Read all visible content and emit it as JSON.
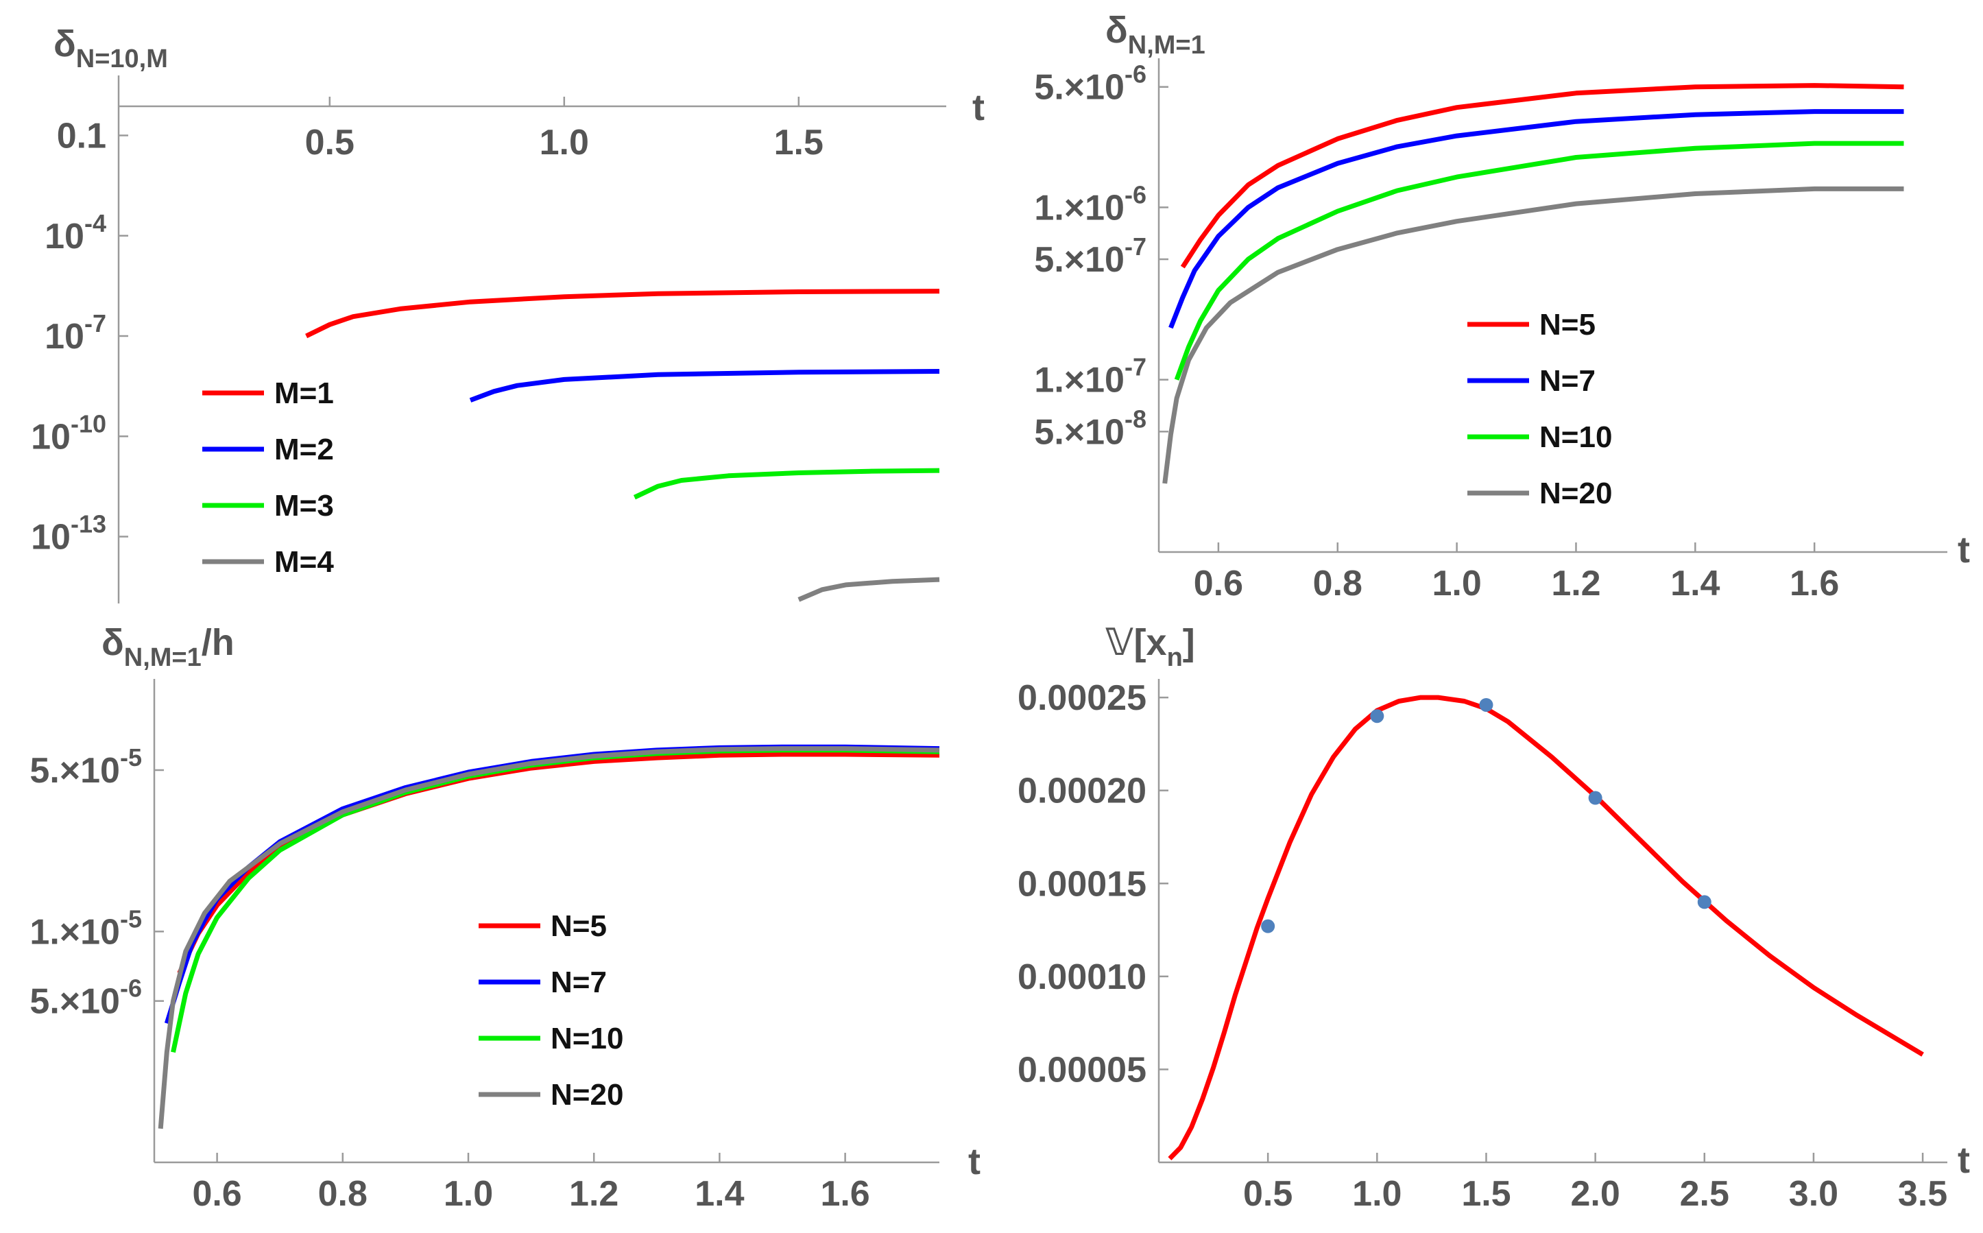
{
  "chart_data": [
    {
      "id": "p1",
      "type": "line",
      "yscale": "log",
      "title": {
        "main": "δ",
        "sub": "N=10,M"
      },
      "xlabel": "t",
      "xlim": [
        0.05,
        1.8
      ],
      "ylim": [
        1e-15,
        10
      ],
      "xticks": [
        {
          "v": 0.5,
          "label": "0.5"
        },
        {
          "v": 1.0,
          "label": "1.0"
        },
        {
          "v": 1.5,
          "label": "1.5"
        }
      ],
      "yticks": [
        {
          "v": 0.1,
          "label": "0.1"
        },
        {
          "v": 0.0001,
          "label": "10",
          "exp": "-4"
        },
        {
          "v": 1e-07,
          "label": "10",
          "exp": "-7"
        },
        {
          "v": 1e-10,
          "label": "10",
          "exp": "-10"
        },
        {
          "v": 1e-13,
          "label": "10",
          "exp": "-13"
        }
      ],
      "legend_position": "bottom-left",
      "series": [
        {
          "name": "M=1",
          "color": "#ff0000",
          "x": [
            0.45,
            0.5,
            0.55,
            0.65,
            0.8,
            1.0,
            1.2,
            1.5,
            1.8
          ],
          "y": [
            1e-07,
            2.2e-07,
            3.8e-07,
            6.5e-07,
            1.05e-06,
            1.5e-06,
            1.85e-06,
            2.1e-06,
            2.2e-06
          ]
        },
        {
          "name": "M=2",
          "color": "#0000ff",
          "x": [
            0.8,
            0.85,
            0.9,
            1.0,
            1.2,
            1.5,
            1.8
          ],
          "y": [
            1.2e-09,
            2.2e-09,
            3.3e-09,
            5e-09,
            7e-09,
            8.3e-09,
            8.8e-09
          ]
        },
        {
          "name": "M=3",
          "color": "#00ee00",
          "x": [
            1.15,
            1.2,
            1.25,
            1.35,
            1.5,
            1.65,
            1.8
          ],
          "y": [
            1.5e-12,
            3.2e-12,
            4.8e-12,
            6.6e-12,
            8.1e-12,
            9e-12,
            9.5e-12
          ]
        },
        {
          "name": "M=4",
          "color": "#808080",
          "x": [
            1.5,
            1.55,
            1.6,
            1.7,
            1.8
          ],
          "y": [
            1.3e-15,
            2.6e-15,
            3.6e-15,
            4.6e-15,
            5.2e-15
          ]
        }
      ]
    },
    {
      "id": "p2",
      "type": "line",
      "yscale": "log",
      "title": {
        "main": "δ",
        "sub": "N,M=1"
      },
      "xlabel": "t",
      "xlim": [
        0.5,
        1.8
      ],
      "ylim": [
        1e-08,
        7e-06
      ],
      "xticks": [
        {
          "v": 0.6,
          "label": "0.6"
        },
        {
          "v": 0.8,
          "label": "0.8"
        },
        {
          "v": 1.0,
          "label": "1.0"
        },
        {
          "v": 1.2,
          "label": "1.2"
        },
        {
          "v": 1.4,
          "label": "1.4"
        },
        {
          "v": 1.6,
          "label": "1.6"
        }
      ],
      "yticks": [
        {
          "v": 5e-06,
          "label": "5.×10",
          "exp": "-6"
        },
        {
          "v": 1e-06,
          "label": "1.×10",
          "exp": "-6"
        },
        {
          "v": 5e-07,
          "label": "5.×10",
          "exp": "-7"
        },
        {
          "v": 1e-07,
          "label": "1.×10",
          "exp": "-7"
        },
        {
          "v": 5e-08,
          "label": "5.×10",
          "exp": "-8"
        }
      ],
      "legend_position": "center-right",
      "series": [
        {
          "name": "N=5",
          "color": "#ff0000",
          "x": [
            0.54,
            0.57,
            0.6,
            0.65,
            0.7,
            0.8,
            0.9,
            1.0,
            1.2,
            1.4,
            1.6,
            1.75
          ],
          "y": [
            4.5e-07,
            6.5e-07,
            9e-07,
            1.35e-06,
            1.75e-06,
            2.5e-06,
            3.2e-06,
            3.8e-06,
            4.6e-06,
            5e-06,
            5.1e-06,
            5e-06
          ]
        },
        {
          "name": "N=7",
          "color": "#0000ff",
          "x": [
            0.52,
            0.54,
            0.56,
            0.58,
            0.6,
            0.65,
            0.7,
            0.8,
            0.9,
            1.0,
            1.2,
            1.4,
            1.6,
            1.75
          ],
          "y": [
            2e-07,
            3e-07,
            4.3e-07,
            5.4e-07,
            6.8e-07,
            1e-06,
            1.3e-06,
            1.8e-06,
            2.25e-06,
            2.6e-06,
            3.15e-06,
            3.45e-06,
            3.6e-06,
            3.6e-06
          ]
        },
        {
          "name": "N=10",
          "color": "#00ee00",
          "x": [
            0.53,
            0.55,
            0.57,
            0.6,
            0.65,
            0.7,
            0.8,
            0.9,
            1.0,
            1.2,
            1.4,
            1.6,
            1.75
          ],
          "y": [
            1e-07,
            1.55e-07,
            2.2e-07,
            3.3e-07,
            5e-07,
            6.6e-07,
            9.5e-07,
            1.25e-06,
            1.5e-06,
            1.95e-06,
            2.2e-06,
            2.35e-06,
            2.35e-06
          ]
        },
        {
          "name": "N=20",
          "color": "#808080",
          "x": [
            0.51,
            0.52,
            0.53,
            0.55,
            0.58,
            0.62,
            0.7,
            0.8,
            0.9,
            1.0,
            1.2,
            1.4,
            1.6,
            1.75
          ],
          "y": [
            2.5e-08,
            4.8e-08,
            7.8e-08,
            1.3e-07,
            2e-07,
            2.8e-07,
            4.2e-07,
            5.7e-07,
            7.1e-07,
            8.3e-07,
            1.05e-06,
            1.2e-06,
            1.28e-06,
            1.28e-06
          ]
        }
      ]
    },
    {
      "id": "p3",
      "type": "line",
      "yscale": "log",
      "title": {
        "main": "δ",
        "sub": "N,M=1",
        "suffix": "/h"
      },
      "xlabel": "t",
      "xlim": [
        0.5,
        1.75
      ],
      "ylim": [
        1e-06,
        0.00012
      ],
      "xticks": [
        {
          "v": 0.6,
          "label": "0.6"
        },
        {
          "v": 0.8,
          "label": "0.8"
        },
        {
          "v": 1.0,
          "label": "1.0"
        },
        {
          "v": 1.2,
          "label": "1.2"
        },
        {
          "v": 1.4,
          "label": "1.4"
        },
        {
          "v": 1.6,
          "label": "1.6"
        }
      ],
      "yticks": [
        {
          "v": 5e-05,
          "label": "5.×10",
          "exp": "-5"
        },
        {
          "v": 1e-05,
          "label": "1.×10",
          "exp": "-5"
        },
        {
          "v": 5e-06,
          "label": "5.×10",
          "exp": "-6"
        }
      ],
      "legend_position": "bottom-center",
      "series": [
        {
          "name": "N=5",
          "color": "#ff0000",
          "x": [
            0.54,
            0.57,
            0.6,
            0.65,
            0.7,
            0.8,
            0.9,
            1.0,
            1.1,
            1.2,
            1.3,
            1.4,
            1.5,
            1.6,
            1.75
          ],
          "y": [
            6.6e-06,
            9.8e-06,
            1.3e-05,
            1.8e-05,
            2.3e-05,
            3.2e-05,
            3.95e-05,
            4.6e-05,
            5.1e-05,
            5.45e-05,
            5.65e-05,
            5.8e-05,
            5.85e-05,
            5.85e-05,
            5.8e-05
          ]
        },
        {
          "name": "N=7",
          "color": "#0000ff",
          "x": [
            0.52,
            0.54,
            0.56,
            0.58,
            0.6,
            0.65,
            0.7,
            0.8,
            0.9,
            1.0,
            1.1,
            1.2,
            1.3,
            1.4,
            1.5,
            1.6,
            1.75
          ],
          "y": [
            4e-06,
            6e-06,
            8.8e-06,
            1.12e-05,
            1.38e-05,
            1.9e-05,
            2.45e-05,
            3.4e-05,
            4.2e-05,
            4.9e-05,
            5.45e-05,
            5.85e-05,
            6.1e-05,
            6.25e-05,
            6.3e-05,
            6.3e-05,
            6.2e-05
          ]
        },
        {
          "name": "N=10",
          "color": "#00ee00",
          "x": [
            0.53,
            0.55,
            0.57,
            0.6,
            0.65,
            0.7,
            0.8,
            0.9,
            1.0,
            1.1,
            1.2,
            1.3,
            1.4,
            1.5,
            1.6,
            1.75
          ],
          "y": [
            3e-06,
            5.4e-06,
            8e-06,
            1.15e-05,
            1.7e-05,
            2.25e-05,
            3.2e-05,
            4e-05,
            4.7e-05,
            5.25e-05,
            5.65e-05,
            5.9e-05,
            6.05e-05,
            6.1e-05,
            6.1e-05,
            6e-05
          ]
        },
        {
          "name": "N=20",
          "color": "#808080",
          "x": [
            0.51,
            0.52,
            0.53,
            0.55,
            0.58,
            0.62,
            0.7,
            0.8,
            0.9,
            1.0,
            1.1,
            1.2,
            1.3,
            1.4,
            1.5,
            1.6,
            1.75
          ],
          "y": [
            1.4e-06,
            3e-06,
            5e-06,
            8.2e-06,
            1.2e-05,
            1.65e-05,
            2.4e-05,
            3.3e-05,
            4.1e-05,
            4.8e-05,
            5.35e-05,
            5.75e-05,
            6e-05,
            6.15e-05,
            6.2e-05,
            6.2e-05,
            6.1e-05
          ]
        }
      ]
    },
    {
      "id": "p4",
      "type": "line",
      "yscale": "linear",
      "title": {
        "main": "𝕍[x",
        "sub": "n",
        "suffix": "]"
      },
      "xlabel": "t",
      "xlim": [
        0.0,
        3.55
      ],
      "ylim": [
        0.0,
        0.00026
      ],
      "xticks": [
        {
          "v": 0.5,
          "label": "0.5"
        },
        {
          "v": 1.0,
          "label": "1.0"
        },
        {
          "v": 1.5,
          "label": "1.5"
        },
        {
          "v": 2.0,
          "label": "2.0"
        },
        {
          "v": 2.5,
          "label": "2.5"
        },
        {
          "v": 3.0,
          "label": "3.0"
        },
        {
          "v": 3.5,
          "label": "3.5"
        }
      ],
      "yticks": [
        {
          "v": 5e-05,
          "label": "0.00005"
        },
        {
          "v": 0.0001,
          "label": "0.00010"
        },
        {
          "v": 0.00015,
          "label": "0.00015"
        },
        {
          "v": 0.0002,
          "label": "0.00020"
        },
        {
          "v": 0.00025,
          "label": "0.00025"
        }
      ],
      "series": [
        {
          "name": "curve",
          "color": "#ff0000",
          "x": [
            0.05,
            0.1,
            0.15,
            0.2,
            0.25,
            0.3,
            0.35,
            0.4,
            0.45,
            0.5,
            0.6,
            0.7,
            0.8,
            0.9,
            1.0,
            1.1,
            1.2,
            1.28,
            1.4,
            1.5,
            1.6,
            1.8,
            2.0,
            2.2,
            2.4,
            2.6,
            2.8,
            3.0,
            3.2,
            3.4,
            3.5
          ],
          "y": [
            2e-06,
            8e-06,
            1.9e-05,
            3.4e-05,
            5.1e-05,
            7e-05,
            9e-05,
            0.000108,
            0.000126,
            0.000142,
            0.000172,
            0.000198,
            0.000218,
            0.000233,
            0.000243,
            0.000248,
            0.00025,
            0.00025,
            0.000248,
            0.000244,
            0.000237,
            0.000218,
            0.000197,
            0.000174,
            0.000151,
            0.00013,
            0.000111,
            9.4e-05,
            7.9e-05,
            6.5e-05,
            5.8e-05
          ]
        },
        {
          "name": "points",
          "color": "#4f81bd",
          "points": [
            [
              0.5,
              0.000127
            ],
            [
              1.0,
              0.00024
            ],
            [
              1.5,
              0.000246
            ],
            [
              2.0,
              0.000196
            ],
            [
              2.5,
              0.00014
            ]
          ]
        }
      ]
    }
  ]
}
